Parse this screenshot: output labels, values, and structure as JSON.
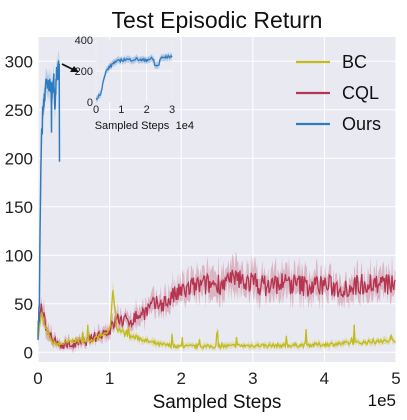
{
  "chart_data": {
    "type": "line",
    "title": "Test Episodic Return",
    "xlabel": "Sampled Steps",
    "x_exponent": "1e5",
    "ylabel": "",
    "xlim": [
      0,
      5
    ],
    "ylim": [
      -10,
      325
    ],
    "x_ticks": [
      "0",
      "1",
      "2",
      "3",
      "4",
      "5"
    ],
    "y_ticks": [
      "0",
      "50",
      "100",
      "150",
      "200",
      "250",
      "300"
    ],
    "grid": true,
    "legend_position": "top-right",
    "series": [
      {
        "name": "BC",
        "color": "#c2bb1a",
        "x": [
          0,
          0.05,
          0.1,
          0.2,
          0.3,
          0.4,
          0.5,
          0.6,
          0.7,
          0.8,
          0.9,
          1.0,
          1.05,
          1.1,
          1.2,
          1.3,
          1.4,
          1.5,
          1.7,
          2.0,
          2.5,
          3.0,
          3.5,
          4.0,
          4.5,
          5.0
        ],
        "y": [
          15,
          40,
          25,
          10,
          8,
          10,
          12,
          12,
          12,
          14,
          18,
          22,
          65,
          25,
          20,
          16,
          15,
          12,
          8,
          6,
          6,
          7,
          7,
          8,
          10,
          12
        ]
      },
      {
        "name": "CQL",
        "color": "#b5344f",
        "x": [
          0,
          0.05,
          0.1,
          0.2,
          0.3,
          0.4,
          0.5,
          0.6,
          0.7,
          0.8,
          0.9,
          1.0,
          1.1,
          1.2,
          1.3,
          1.4,
          1.5,
          1.6,
          1.7,
          1.8,
          1.9,
          2.0,
          2.2,
          2.4,
          2.6,
          2.8,
          3.0,
          3.2,
          3.4,
          3.6,
          3.8,
          4.0,
          4.2,
          4.4,
          4.6,
          4.8,
          5.0
        ],
        "y": [
          20,
          45,
          30,
          12,
          8,
          8,
          8,
          10,
          12,
          16,
          20,
          22,
          35,
          32,
          33,
          38,
          42,
          48,
          50,
          52,
          58,
          62,
          68,
          70,
          72,
          75,
          72,
          68,
          72,
          70,
          68,
          70,
          66,
          68,
          72,
          70,
          70
        ]
      }
    ],
    "inset": {
      "xlabel": "Sampled Steps",
      "x_exponent": "1e4",
      "xlim": [
        0,
        3
      ],
      "ylim": [
        0,
        400
      ],
      "x_ticks": [
        "0",
        "1",
        "2",
        "3"
      ],
      "y_ticks": [
        "0",
        "200",
        "400"
      ],
      "series": [
        {
          "name": "Ours",
          "color": "#2f7bbf",
          "x": [
            0,
            0.2,
            0.3,
            0.4,
            0.5,
            0.6,
            0.7,
            0.8,
            0.9,
            1.0,
            1.2,
            1.4,
            1.6,
            1.8,
            2.0,
            2.2,
            2.4,
            2.6,
            2.8,
            3.0
          ],
          "y": [
            20,
            60,
            140,
            200,
            220,
            235,
            255,
            260,
            265,
            270,
            275,
            272,
            278,
            270,
            272,
            280,
            255,
            285,
            290,
            295
          ]
        }
      ]
    }
  }
}
